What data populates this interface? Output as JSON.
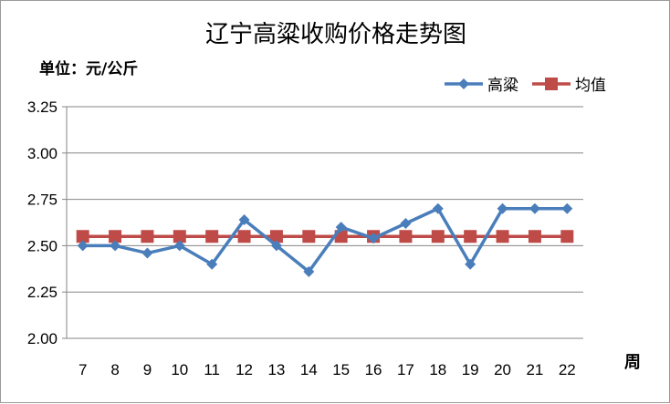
{
  "chart_data": {
    "type": "line",
    "title": "辽宁高粱收购价格走势图",
    "unit_label": "单位：元/公斤",
    "xlabel": "周",
    "ylabel": "",
    "categories": [
      "7",
      "8",
      "9",
      "10",
      "11",
      "12",
      "13",
      "14",
      "15",
      "16",
      "17",
      "18",
      "19",
      "20",
      "21",
      "22"
    ],
    "ylim": [
      2.0,
      3.25
    ],
    "yticks": [
      "2.00",
      "2.25",
      "2.50",
      "2.75",
      "3.00",
      "3.25"
    ],
    "grid": true,
    "legend_position": "top-right",
    "series": [
      {
        "name": "高粱",
        "color": "#4a7ebb",
        "marker": "diamond",
        "values": [
          2.5,
          2.5,
          2.46,
          2.5,
          2.4,
          2.64,
          2.5,
          2.36,
          2.6,
          2.54,
          2.62,
          2.7,
          2.4,
          2.7,
          2.7,
          2.7
        ]
      },
      {
        "name": "均值",
        "color": "#be4b48",
        "marker": "square",
        "values": [
          2.55,
          2.55,
          2.55,
          2.55,
          2.55,
          2.55,
          2.55,
          2.55,
          2.55,
          2.55,
          2.55,
          2.55,
          2.55,
          2.55,
          2.55,
          2.55
        ]
      }
    ]
  }
}
